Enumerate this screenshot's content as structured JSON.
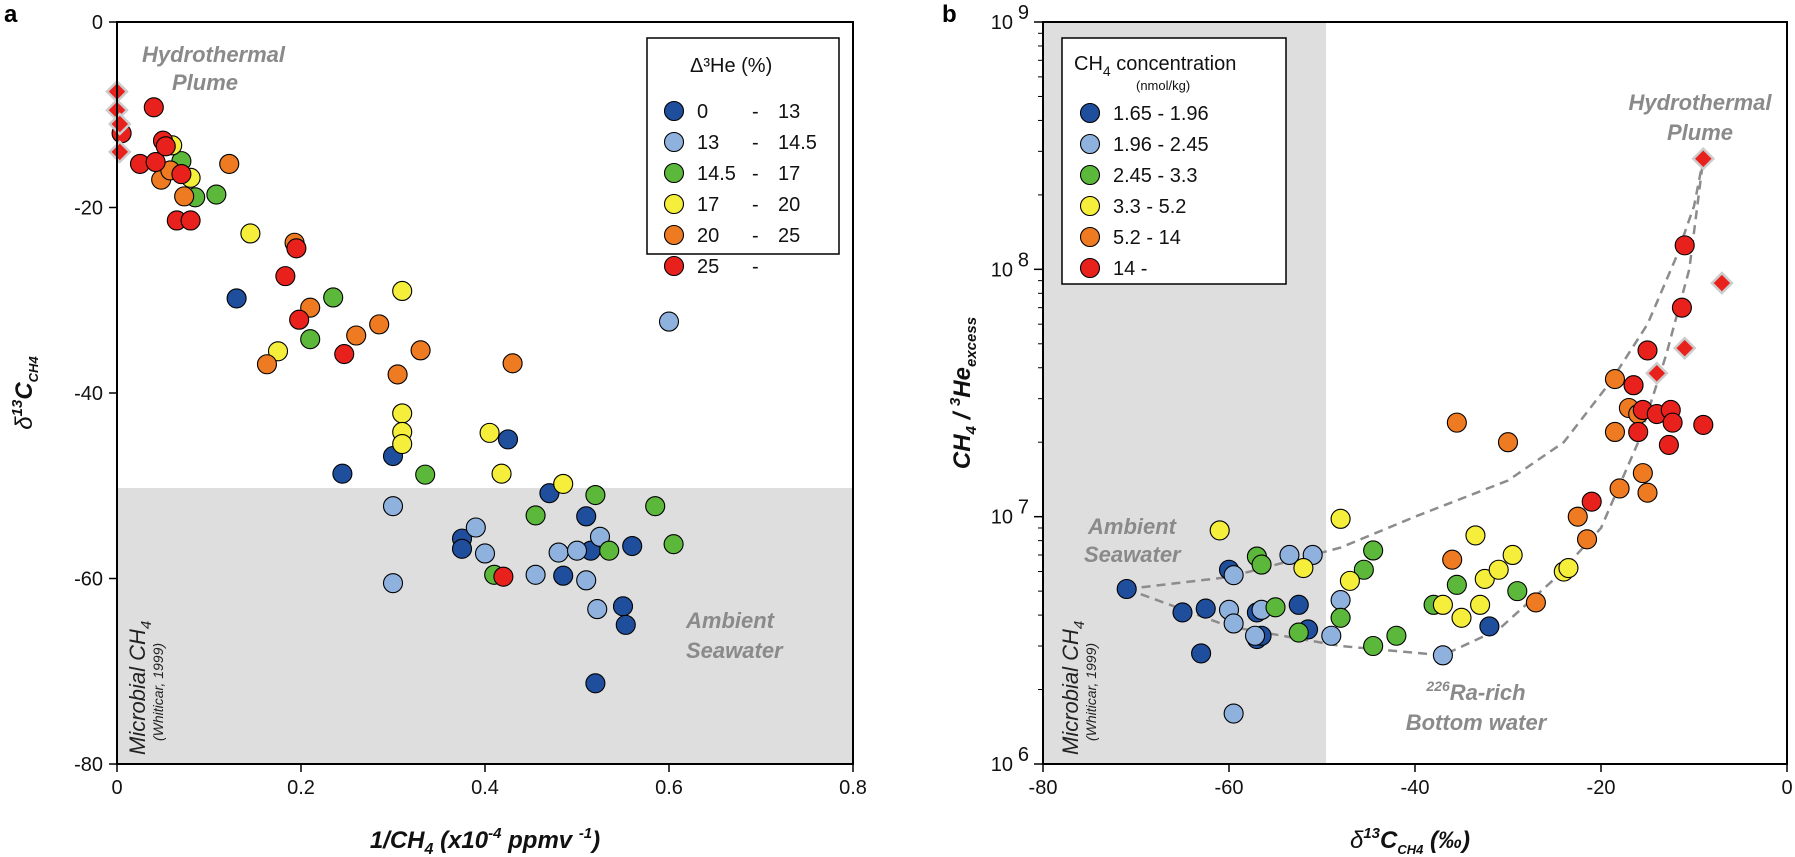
{
  "chart_data": [
    {
      "panel": "a",
      "type": "scatter",
      "xlabel_main": "1/CH",
      "xlabel_sub": "4",
      "xlabel_rest": " (x10",
      "xlabel_sup": "-4",
      "xlabel_unit": " ppmv ",
      "xlabel_sup2": "-1",
      "xlabel_end": ")",
      "ylabel_delta": "δ",
      "ylabel_sup": "13",
      "ylabel_c": "C",
      "ylabel_sub": "CH4",
      "xlim": [
        0,
        0.8
      ],
      "ylim": [
        -80,
        0
      ],
      "xticks": [
        0,
        0.2,
        0.4,
        0.6,
        0.8
      ],
      "xtick_labels": [
        "0",
        "0.2",
        "0.4",
        "0.6",
        "0.8"
      ],
      "yticks": [
        0,
        -20,
        -40,
        -60,
        -80
      ],
      "ytick_labels": [
        "0",
        "-20",
        "-40",
        "-60",
        "-80"
      ],
      "shaded_region": {
        "y_from": -80,
        "y_to": -50
      },
      "annotations": {
        "plume_1": "Hydrothermal",
        "plume_2": "Plume",
        "ambient_1": "Ambient",
        "ambient_2": "Seawater",
        "microbial_main": "Microbial CH",
        "microbial_sub": "4",
        "microbial_ref": "(Whiticar, 1999)"
      },
      "legend": {
        "title": "Δ³He (%)",
        "entries": [
          {
            "from": "0",
            "dash": "-",
            "to": "13",
            "color": "#1f4e9c"
          },
          {
            "from": "13",
            "dash": "-",
            "to": "14.5",
            "color": "#8fb1de"
          },
          {
            "from": "14.5",
            "dash": "-",
            "to": "17",
            "color": "#5cb83a"
          },
          {
            "from": "17",
            "dash": "-",
            "to": "20",
            "color": "#f5ee3a"
          },
          {
            "from": "20",
            "dash": "-",
            "to": "25",
            "color": "#ee7a22"
          },
          {
            "from": "25",
            "dash": "-",
            "to": "",
            "color": "#e8211d"
          }
        ]
      },
      "diamonds": [
        [
          0.0,
          -7.5
        ],
        [
          0.0,
          -9.5
        ],
        [
          0.003,
          -11
        ],
        [
          0.003,
          -14
        ]
      ],
      "series": [
        {
          "name": "0 - 13",
          "color": "#1f4e9c",
          "points": [
            [
              0.13,
              -29.8
            ],
            [
              0.245,
              -48.7
            ],
            [
              0.3,
              -46.8
            ],
            [
              0.375,
              -55.7
            ],
            [
              0.375,
              -56.8
            ],
            [
              0.425,
              -45
            ],
            [
              0.47,
              -50.8
            ],
            [
              0.485,
              -59.7
            ],
            [
              0.51,
              -53.3
            ],
            [
              0.515,
              -57
            ],
            [
              0.55,
              -63
            ],
            [
              0.553,
              -65
            ],
            [
              0.56,
              -56.5
            ],
            [
              0.52,
              -71.3
            ]
          ]
        },
        {
          "name": "13 - 14.5",
          "color": "#8fb1de",
          "points": [
            [
              0.3,
              -52.2
            ],
            [
              0.3,
              -60.5
            ],
            [
              0.39,
              -54.5
            ],
            [
              0.4,
              -57.3
            ],
            [
              0.455,
              -59.6
            ],
            [
              0.48,
              -57.2
            ],
            [
              0.5,
              -57
            ],
            [
              0.51,
              -60.2
            ],
            [
              0.525,
              -55.5
            ],
            [
              0.522,
              -63.3
            ],
            [
              0.6,
              -32.3
            ]
          ]
        },
        {
          "name": "14.5 - 17",
          "color": "#5cb83a",
          "points": [
            [
              0.07,
              -15
            ],
            [
              0.085,
              -18.9
            ],
            [
              0.108,
              -18.6
            ],
            [
              0.21,
              -34.2
            ],
            [
              0.235,
              -29.7
            ],
            [
              0.335,
              -48.8
            ],
            [
              0.41,
              -59.6
            ],
            [
              0.455,
              -53.2
            ],
            [
              0.52,
              -51
            ],
            [
              0.535,
              -57
            ],
            [
              0.585,
              -52.2
            ],
            [
              0.605,
              -56.3
            ]
          ]
        },
        {
          "name": "17 - 20",
          "color": "#f5ee3a",
          "points": [
            [
              0.06,
              -13.3
            ],
            [
              0.08,
              -16.8
            ],
            [
              0.145,
              -22.8
            ],
            [
              0.175,
              -35.5
            ],
            [
              0.31,
              -29
            ],
            [
              0.31,
              -42.2
            ],
            [
              0.31,
              -44.2
            ],
            [
              0.31,
              -45.5
            ],
            [
              0.405,
              -44.3
            ],
            [
              0.418,
              -48.7
            ],
            [
              0.485,
              -49.8
            ]
          ]
        },
        {
          "name": "20 - 25",
          "color": "#ee7a22",
          "points": [
            [
              0.048,
              -17
            ],
            [
              0.058,
              -16
            ],
            [
              0.073,
              -18.8
            ],
            [
              0.122,
              -15.3
            ],
            [
              0.163,
              -36.9
            ],
            [
              0.193,
              -23.8
            ],
            [
              0.21,
              -30.8
            ],
            [
              0.26,
              -33.8
            ],
            [
              0.285,
              -32.6
            ],
            [
              0.305,
              -38
            ],
            [
              0.33,
              -35.4
            ],
            [
              0.43,
              -36.8
            ]
          ]
        },
        {
          "name": "25 -",
          "color": "#e8211d",
          "points": [
            [
              0.005,
              -12
            ],
            [
              0.025,
              -15.3
            ],
            [
              0.04,
              -9.2
            ],
            [
              0.042,
              -15.1
            ],
            [
              0.05,
              -12.8
            ],
            [
              0.053,
              -13.4
            ],
            [
              0.065,
              -21.4
            ],
            [
              0.07,
              -16.4
            ],
            [
              0.08,
              -21.4
            ],
            [
              0.183,
              -27.4
            ],
            [
              0.195,
              -24.4
            ],
            [
              0.198,
              -32.1
            ],
            [
              0.247,
              -35.8
            ],
            [
              0.42,
              -59.8
            ]
          ]
        }
      ]
    },
    {
      "panel": "b",
      "type": "scatter",
      "yscale": "log",
      "xlabel_delta": "δ",
      "xlabel_sup": "13",
      "xlabel_c": "C",
      "xlabel_sub": "CH4",
      "xlabel_unit": " (‰)",
      "ylabel_a": "CH",
      "ylabel_a_sub": "4",
      "ylabel_mid": " / ",
      "ylabel_b_sup": "3",
      "ylabel_b": "He",
      "ylabel_b_sub": "excess",
      "xlim": [
        -80,
        0
      ],
      "ylim": [
        1000000,
        1000000000
      ],
      "xticks": [
        -80,
        -60,
        -40,
        -20,
        0
      ],
      "xtick_labels": [
        "-80",
        "-60",
        "-40",
        "-20",
        "0"
      ],
      "ytick_base": [
        "10",
        "10",
        "10",
        "10"
      ],
      "ytick_exp": [
        "6",
        "7",
        "8",
        "9"
      ],
      "shaded_region": {
        "x_from": -80,
        "x_to": -50
      },
      "annotations": {
        "plume_1": "Hydrothermal",
        "plume_2": "Plume",
        "ambient_1": "Ambient",
        "ambient_2": "Seawater",
        "ra_sup": "226",
        "ra_1": "Ra-rich",
        "ra_2": "Bottom water",
        "microbial_main": "Microbial CH",
        "microbial_sub": "4",
        "microbial_ref": "(Whiticar, 1999)"
      },
      "legend": {
        "title_main": "CH",
        "title_sub": "4",
        "title_rest": " concentration",
        "subtitle": "(nmol/kg)",
        "entries": [
          {
            "label": "1.65 - 1.96",
            "color": "#1f4e9c"
          },
          {
            "label": "1.96 - 2.45",
            "color": "#8fb1de"
          },
          {
            "label": "2.45 - 3.3",
            "color": "#5cb83a"
          },
          {
            "label": "3.3 - 5.2",
            "color": "#f5ee3a"
          },
          {
            "label": "5.2 - 14",
            "color": "#ee7a22"
          },
          {
            "label": "14 -",
            "color": "#e8211d"
          }
        ]
      },
      "trend_lines": [
        [
          [
            -71,
            5100000
          ],
          [
            -60,
            5700000
          ],
          [
            -48,
            7500000
          ],
          [
            -40,
            10000000
          ],
          [
            -30,
            14000000
          ],
          [
            -24,
            20000000
          ],
          [
            -19,
            35000000
          ],
          [
            -15,
            60000000
          ],
          [
            -12,
            110000000
          ],
          [
            -10,
            180000000
          ],
          [
            -9,
            280000000
          ]
        ],
        [
          [
            -71,
            5100000
          ],
          [
            -60,
            3600000
          ],
          [
            -48,
            3000000
          ],
          [
            -37,
            2750000
          ],
          [
            -31,
            3500000
          ],
          [
            -25,
            5600000
          ],
          [
            -20,
            9000000
          ],
          [
            -16,
            20000000
          ],
          [
            -13,
            45000000
          ],
          [
            -10.5,
            100000000
          ],
          [
            -9,
            280000000
          ]
        ]
      ],
      "diamonds": [
        [
          -9,
          280000000
        ],
        [
          -7,
          88000000
        ],
        [
          -14,
          38000000
        ],
        [
          -11,
          48000000
        ]
      ],
      "series": [
        {
          "name": "1.65 - 1.96",
          "color": "#1f4e9c",
          "points": [
            [
              -71,
              5100000
            ],
            [
              -65,
              4100000
            ],
            [
              -62.5,
              4250000
            ],
            [
              -63,
              2800000
            ],
            [
              -60,
              6100000
            ],
            [
              -57,
              4100000
            ],
            [
              -57,
              3200000
            ],
            [
              -56.5,
              3300000
            ],
            [
              -52.5,
              4400000
            ],
            [
              -51.5,
              3500000
            ],
            [
              -32,
              3600000
            ]
          ]
        },
        {
          "name": "1.96 - 2.45",
          "color": "#8fb1de",
          "points": [
            [
              -60,
              4200000
            ],
            [
              -59.5,
              5800000
            ],
            [
              -59.5,
              3700000
            ],
            [
              -59.5,
              1600000
            ],
            [
              -57.2,
              3300000
            ],
            [
              -56.5,
              4200000
            ],
            [
              -53.5,
              7000000
            ],
            [
              -51,
              7000000
            ],
            [
              -49,
              3300000
            ],
            [
              -48,
              4600000
            ],
            [
              -37,
              2750000
            ]
          ]
        },
        {
          "name": "2.45 - 3.3",
          "color": "#5cb83a",
          "points": [
            [
              -57,
              6900000
            ],
            [
              -56.5,
              6400000
            ],
            [
              -55,
              4300000
            ],
            [
              -52.5,
              3400000
            ],
            [
              -48,
              3900000
            ],
            [
              -45.5,
              6100000
            ],
            [
              -44.5,
              7300000
            ],
            [
              -44.5,
              3000000
            ],
            [
              -42,
              3300000
            ],
            [
              -38,
              4400000
            ],
            [
              -35.5,
              5300000
            ],
            [
              -29,
              5000000
            ]
          ]
        },
        {
          "name": "3.3 - 5.2",
          "color": "#f5ee3a",
          "points": [
            [
              -61,
              8800000
            ],
            [
              -52,
              6200000
            ],
            [
              -48,
              9800000
            ],
            [
              -47,
              5500000
            ],
            [
              -37,
              4400000
            ],
            [
              -35,
              3900000
            ],
            [
              -33.5,
              8400000
            ],
            [
              -33,
              4400000
            ],
            [
              -32.5,
              5600000
            ],
            [
              -31,
              6100000
            ],
            [
              -29.5,
              7000000
            ],
            [
              -24,
              6000000
            ],
            [
              -23.5,
              6200000
            ]
          ]
        },
        {
          "name": "5.2 - 14",
          "color": "#ee7a22",
          "points": [
            [
              -35.5,
              24000000
            ],
            [
              -30,
              20000000
            ],
            [
              -36,
              6700000
            ],
            [
              -27,
              4500000
            ],
            [
              -22.5,
              10000000
            ],
            [
              -21.5,
              8100000
            ],
            [
              -18.5,
              36000000
            ],
            [
              -18.5,
              22000000
            ],
            [
              -18,
              13000000
            ],
            [
              -17,
              27500000
            ],
            [
              -16,
              26000000
            ],
            [
              -15.5,
              15000000
            ],
            [
              -15,
              12500000
            ]
          ]
        },
        {
          "name": "14 -",
          "color": "#e8211d",
          "points": [
            [
              -11,
              125000000
            ],
            [
              -11.3,
              70000000
            ],
            [
              -15,
              47000000
            ],
            [
              -16.5,
              34000000
            ],
            [
              -16,
              22000000
            ],
            [
              -15.5,
              27000000
            ],
            [
              -14,
              26000000
            ],
            [
              -12.5,
              27000000
            ],
            [
              -12.3,
              24000000
            ],
            [
              -12.7,
              19500000
            ],
            [
              -9,
              23500000
            ],
            [
              -21,
              11500000
            ]
          ]
        }
      ]
    }
  ]
}
